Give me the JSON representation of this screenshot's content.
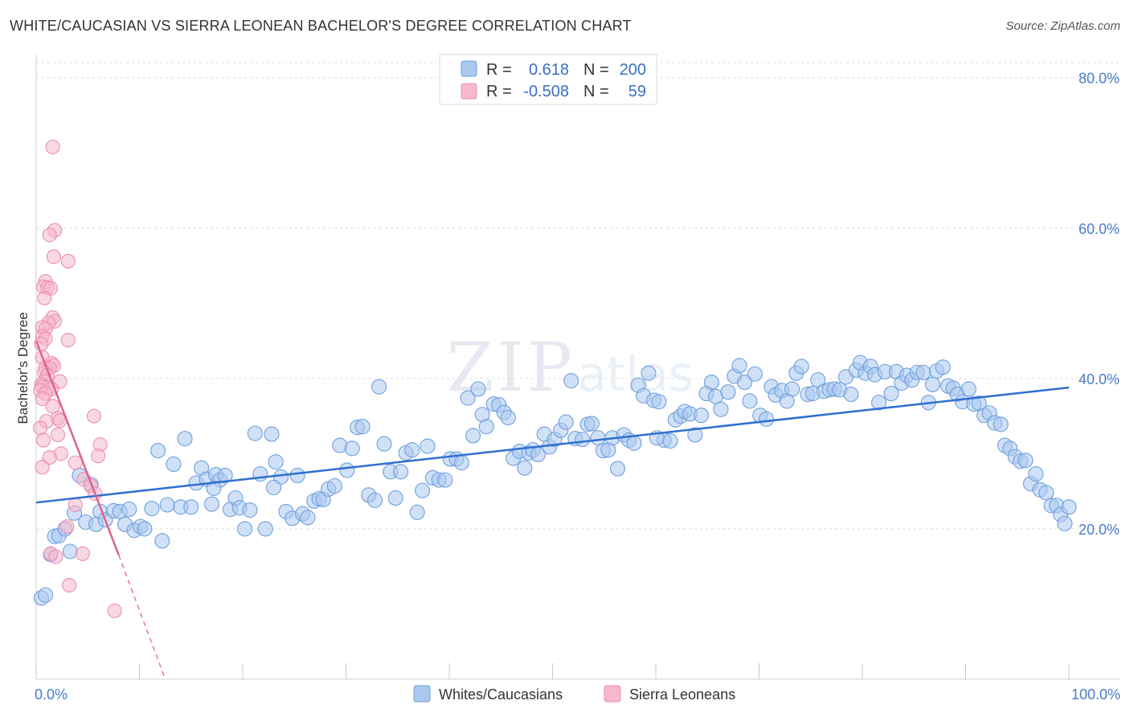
{
  "title": "WHITE/CAUCASIAN VS SIERRA LEONEAN BACHELOR'S DEGREE CORRELATION CHART",
  "source": "Source: ZipAtlas.com",
  "watermark": {
    "zip": "ZIP",
    "atlas": "atlas"
  },
  "colors": {
    "blue_fill": "#a9c8f0",
    "blue_stroke": "#6f9fdc",
    "blue_line": "#2f6fd0",
    "pink_fill": "#f6b8cc",
    "pink_stroke": "#ec8fad",
    "pink_line": "#e0628e",
    "grid": "#dcdcdc",
    "axis_text": "#4a7cc9"
  },
  "legend": {
    "rows": [
      {
        "r_label": "R =",
        "r_value": "0.618",
        "n_label": "N =",
        "n_value": "200",
        "color": "blue"
      },
      {
        "r_label": "R =",
        "r_value": "-0.508",
        "n_label": "N =",
        "n_value": "59",
        "color": "pink"
      }
    ]
  },
  "bottom_legend": [
    "Whites/Caucasians",
    "Sierra Leoneans"
  ],
  "chart_data": {
    "type": "scatter",
    "title": "WHITE/CAUCASIAN VS SIERRA LEONEAN BACHELOR'S DEGREE CORRELATION CHART",
    "xlabel": "",
    "ylabel": "Bachelor's Degree",
    "xlim": [
      0,
      100
    ],
    "ylim": [
      0,
      82
    ],
    "x_tick_labels": [
      "0.0%",
      "100.0%"
    ],
    "y_ticks": [
      20,
      40,
      60,
      80
    ],
    "y_tick_labels": [
      "20.0%",
      "40.0%",
      "60.0%",
      "80.0%"
    ],
    "grid": true,
    "series": [
      {
        "name": "Whites/Caucasians",
        "color": "blue",
        "r": 0.618,
        "n": 200,
        "trend": {
          "x0": 0,
          "y0": 23.5,
          "x1": 100,
          "y1": 38.8
        },
        "points": [
          [
            0.5,
            10.8
          ],
          [
            0.9,
            11.2
          ],
          [
            1.4,
            16.6
          ],
          [
            1.8,
            19.0
          ],
          [
            2.2,
            19.1
          ],
          [
            2.8,
            20.0
          ],
          [
            3.3,
            17.0
          ],
          [
            3.7,
            22.1
          ],
          [
            4.2,
            27.1
          ],
          [
            4.8,
            20.9
          ],
          [
            5.3,
            25.9
          ],
          [
            5.8,
            20.6
          ],
          [
            6.2,
            22.3
          ],
          [
            6.7,
            21.2
          ],
          [
            7.5,
            22.4
          ],
          [
            8.1,
            22.3
          ],
          [
            8.6,
            20.6
          ],
          [
            9.0,
            22.6
          ],
          [
            9.5,
            19.8
          ],
          [
            10.1,
            20.3
          ],
          [
            10.5,
            20.0
          ],
          [
            11.2,
            22.7
          ],
          [
            11.8,
            30.4
          ],
          [
            12.2,
            18.4
          ],
          [
            12.7,
            23.2
          ],
          [
            13.3,
            28.6
          ],
          [
            14.0,
            22.9
          ],
          [
            14.4,
            32.0
          ],
          [
            15.0,
            22.9
          ],
          [
            15.5,
            26.1
          ],
          [
            16.0,
            28.1
          ],
          [
            16.5,
            26.6
          ],
          [
            17.0,
            23.3
          ],
          [
            17.4,
            27.2
          ],
          [
            17.8,
            26.5
          ],
          [
            18.3,
            27.1
          ],
          [
            18.8,
            22.6
          ],
          [
            19.3,
            24.1
          ],
          [
            19.7,
            22.8
          ],
          [
            20.2,
            20.0
          ],
          [
            20.7,
            22.5
          ],
          [
            21.2,
            32.7
          ],
          [
            21.7,
            27.3
          ],
          [
            22.2,
            20.0
          ],
          [
            22.8,
            32.6
          ],
          [
            23.2,
            28.9
          ],
          [
            23.7,
            26.9
          ],
          [
            24.2,
            22.3
          ],
          [
            24.8,
            21.4
          ],
          [
            25.3,
            27.1
          ],
          [
            25.8,
            22.0
          ],
          [
            26.3,
            21.5
          ],
          [
            26.9,
            23.7
          ],
          [
            27.4,
            24.0
          ],
          [
            27.8,
            23.9
          ],
          [
            28.3,
            25.3
          ],
          [
            28.9,
            25.7
          ],
          [
            29.4,
            31.1
          ],
          [
            30.1,
            27.8
          ],
          [
            30.6,
            30.7
          ],
          [
            31.1,
            33.5
          ],
          [
            31.6,
            33.6
          ],
          [
            32.2,
            24.5
          ],
          [
            32.8,
            23.8
          ],
          [
            33.2,
            38.9
          ],
          [
            33.7,
            31.3
          ],
          [
            34.3,
            27.6
          ],
          [
            34.8,
            24.1
          ],
          [
            35.3,
            27.6
          ],
          [
            35.8,
            30.1
          ],
          [
            36.4,
            30.5
          ],
          [
            36.9,
            22.2
          ],
          [
            37.4,
            25.1
          ],
          [
            37.9,
            31.0
          ],
          [
            38.4,
            26.8
          ],
          [
            39.0,
            26.5
          ],
          [
            39.6,
            26.5
          ],
          [
            40.1,
            29.3
          ],
          [
            40.7,
            29.3
          ],
          [
            41.2,
            28.8
          ],
          [
            41.8,
            37.4
          ],
          [
            42.3,
            32.4
          ],
          [
            42.8,
            38.6
          ],
          [
            43.2,
            35.2
          ],
          [
            43.6,
            33.6
          ],
          [
            44.3,
            36.6
          ],
          [
            44.8,
            36.5
          ],
          [
            45.3,
            35.5
          ],
          [
            45.7,
            34.8
          ],
          [
            46.2,
            29.4
          ],
          [
            46.8,
            30.3
          ],
          [
            47.3,
            28.1
          ],
          [
            47.7,
            30.1
          ],
          [
            48.1,
            30.5
          ],
          [
            48.6,
            29.9
          ],
          [
            49.2,
            32.6
          ],
          [
            49.7,
            30.9
          ],
          [
            50.2,
            31.9
          ],
          [
            50.8,
            33.1
          ],
          [
            51.3,
            34.2
          ],
          [
            51.8,
            39.7
          ],
          [
            52.2,
            32.0
          ],
          [
            52.9,
            31.9
          ],
          [
            53.4,
            33.9
          ],
          [
            53.8,
            34.0
          ],
          [
            54.4,
            32.1
          ],
          [
            54.9,
            30.4
          ],
          [
            55.4,
            30.5
          ],
          [
            55.8,
            32.1
          ],
          [
            56.3,
            28.0
          ],
          [
            56.9,
            32.5
          ],
          [
            57.4,
            31.8
          ],
          [
            57.9,
            31.4
          ],
          [
            58.3,
            39.1
          ],
          [
            58.8,
            37.7
          ],
          [
            59.3,
            40.7
          ],
          [
            59.8,
            37.1
          ],
          [
            60.3,
            36.9
          ],
          [
            60.8,
            31.8
          ],
          [
            61.4,
            31.7
          ],
          [
            61.9,
            34.5
          ],
          [
            62.4,
            35.0
          ],
          [
            62.8,
            35.6
          ],
          [
            63.3,
            35.3
          ],
          [
            63.8,
            32.5
          ],
          [
            64.4,
            35.1
          ],
          [
            64.9,
            38.0
          ],
          [
            65.4,
            39.5
          ],
          [
            65.8,
            37.6
          ],
          [
            66.3,
            35.9
          ],
          [
            67.0,
            38.2
          ],
          [
            67.6,
            40.3
          ],
          [
            68.1,
            41.7
          ],
          [
            68.6,
            39.5
          ],
          [
            69.1,
            37.0
          ],
          [
            69.6,
            40.6
          ],
          [
            70.1,
            35.1
          ],
          [
            70.7,
            34.6
          ],
          [
            71.2,
            38.9
          ],
          [
            71.6,
            37.8
          ],
          [
            72.2,
            38.4
          ],
          [
            72.7,
            37.0
          ],
          [
            73.2,
            38.6
          ],
          [
            73.6,
            40.7
          ],
          [
            74.1,
            41.6
          ],
          [
            74.7,
            37.9
          ],
          [
            75.2,
            38.0
          ],
          [
            75.7,
            39.8
          ],
          [
            76.3,
            38.3
          ],
          [
            76.8,
            38.5
          ],
          [
            77.3,
            38.6
          ],
          [
            77.8,
            38.5
          ],
          [
            78.4,
            40.2
          ],
          [
            78.9,
            37.9
          ],
          [
            79.4,
            41.1
          ],
          [
            79.8,
            42.1
          ],
          [
            80.3,
            40.7
          ],
          [
            80.8,
            41.6
          ],
          [
            81.2,
            40.5
          ],
          [
            81.6,
            36.8
          ],
          [
            82.2,
            40.9
          ],
          [
            82.8,
            38.0
          ],
          [
            83.3,
            40.9
          ],
          [
            83.8,
            39.4
          ],
          [
            84.3,
            40.4
          ],
          [
            84.8,
            39.8
          ],
          [
            85.3,
            40.8
          ],
          [
            85.9,
            40.8
          ],
          [
            86.4,
            36.8
          ],
          [
            86.8,
            39.2
          ],
          [
            87.2,
            41.0
          ],
          [
            87.8,
            41.5
          ],
          [
            88.3,
            39.0
          ],
          [
            88.8,
            38.7
          ],
          [
            89.2,
            37.9
          ],
          [
            89.7,
            36.9
          ],
          [
            90.3,
            38.6
          ],
          [
            90.8,
            36.6
          ],
          [
            91.3,
            36.7
          ],
          [
            91.8,
            35.1
          ],
          [
            92.3,
            35.4
          ],
          [
            92.8,
            34.1
          ],
          [
            93.4,
            33.9
          ],
          [
            93.8,
            31.1
          ],
          [
            94.3,
            30.7
          ],
          [
            94.8,
            29.6
          ],
          [
            95.3,
            29.0
          ],
          [
            95.8,
            29.1
          ],
          [
            96.3,
            26.0
          ],
          [
            96.8,
            27.3
          ],
          [
            97.2,
            25.2
          ],
          [
            97.8,
            24.8
          ],
          [
            98.3,
            23.1
          ],
          [
            98.8,
            23.1
          ],
          [
            99.2,
            21.9
          ],
          [
            99.6,
            20.7
          ],
          [
            100.0,
            22.9
          ],
          [
            23.0,
            25.5
          ],
          [
            17.2,
            25.4
          ],
          [
            60.1,
            32.1
          ]
        ]
      },
      {
        "name": "Sierra Leoneans",
        "color": "pink",
        "r": -0.508,
        "n": 59,
        "trend": {
          "x0": 0,
          "y0": 45.0,
          "x1": 8.0,
          "y1": 16.5,
          "dash_x1": 12.5,
          "dash_y1": 0
        },
        "points": [
          [
            1.6,
            70.8
          ],
          [
            1.8,
            59.7
          ],
          [
            1.3,
            59.1
          ],
          [
            1.7,
            56.2
          ],
          [
            3.1,
            55.6
          ],
          [
            0.9,
            52.9
          ],
          [
            0.7,
            52.2
          ],
          [
            1.1,
            52.1
          ],
          [
            1.4,
            52.0
          ],
          [
            0.8,
            50.7
          ],
          [
            1.6,
            48.1
          ],
          [
            1.8,
            47.6
          ],
          [
            1.2,
            47.4
          ],
          [
            0.6,
            46.8
          ],
          [
            0.9,
            46.6
          ],
          [
            0.6,
            45.6
          ],
          [
            0.9,
            45.3
          ],
          [
            3.1,
            45.1
          ],
          [
            0.5,
            44.6
          ],
          [
            0.6,
            42.8
          ],
          [
            1.5,
            42.0
          ],
          [
            1.7,
            41.7
          ],
          [
            0.9,
            41.4
          ],
          [
            1.3,
            41.4
          ],
          [
            0.8,
            40.8
          ],
          [
            1.1,
            40.4
          ],
          [
            2.3,
            39.6
          ],
          [
            0.8,
            39.6
          ],
          [
            0.5,
            39.2
          ],
          [
            0.6,
            38.9
          ],
          [
            1.2,
            38.8
          ],
          [
            1.5,
            38.6
          ],
          [
            0.4,
            38.4
          ],
          [
            0.9,
            38.0
          ],
          [
            0.6,
            37.3
          ],
          [
            1.6,
            36.3
          ],
          [
            2.1,
            34.7
          ],
          [
            2.3,
            34.4
          ],
          [
            1.0,
            34.3
          ],
          [
            5.6,
            35.0
          ],
          [
            0.4,
            33.4
          ],
          [
            2.1,
            32.5
          ],
          [
            0.7,
            31.8
          ],
          [
            6.2,
            31.2
          ],
          [
            2.4,
            30.0
          ],
          [
            1.3,
            29.5
          ],
          [
            6.0,
            29.7
          ],
          [
            3.8,
            28.8
          ],
          [
            0.6,
            28.2
          ],
          [
            4.6,
            26.6
          ],
          [
            5.3,
            25.7
          ],
          [
            5.7,
            24.7
          ],
          [
            3.8,
            23.2
          ],
          [
            3.0,
            20.3
          ],
          [
            1.4,
            16.7
          ],
          [
            1.9,
            16.3
          ],
          [
            4.5,
            16.7
          ],
          [
            3.2,
            12.5
          ],
          [
            7.6,
            9.1
          ]
        ]
      }
    ]
  }
}
